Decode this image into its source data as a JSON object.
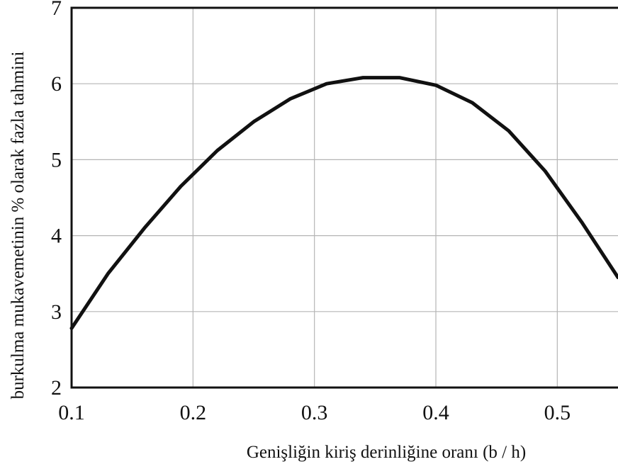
{
  "chart_data": {
    "type": "line",
    "title": "",
    "xlabel": "Genişliğin kiriş derinliğine oranı (b / h)",
    "ylabel": "burkulma mukavemetinin % olarak fazla tahmini",
    "xlim": [
      0.1,
      0.55
    ],
    "ylim": [
      2,
      7
    ],
    "xticks": [
      0.1,
      0.2,
      0.3,
      0.4,
      0.5
    ],
    "xtick_labels": [
      "0.1",
      "0.2",
      "0.3",
      "0.4",
      "0.5"
    ],
    "yticks": [
      2,
      3,
      4,
      5,
      6,
      7
    ],
    "ytick_labels": [
      "2",
      "3",
      "4",
      "5",
      "6",
      "7"
    ],
    "grid": true,
    "series": [
      {
        "x": [
          0.1,
          0.13,
          0.16,
          0.19,
          0.22,
          0.25,
          0.28,
          0.31,
          0.34,
          0.37,
          0.4,
          0.43,
          0.46,
          0.49,
          0.52,
          0.55
        ],
        "y": [
          2.78,
          3.5,
          4.1,
          4.65,
          5.12,
          5.5,
          5.8,
          6.0,
          6.08,
          6.08,
          5.98,
          5.75,
          5.38,
          4.85,
          4.18,
          3.45
        ]
      }
    ]
  }
}
